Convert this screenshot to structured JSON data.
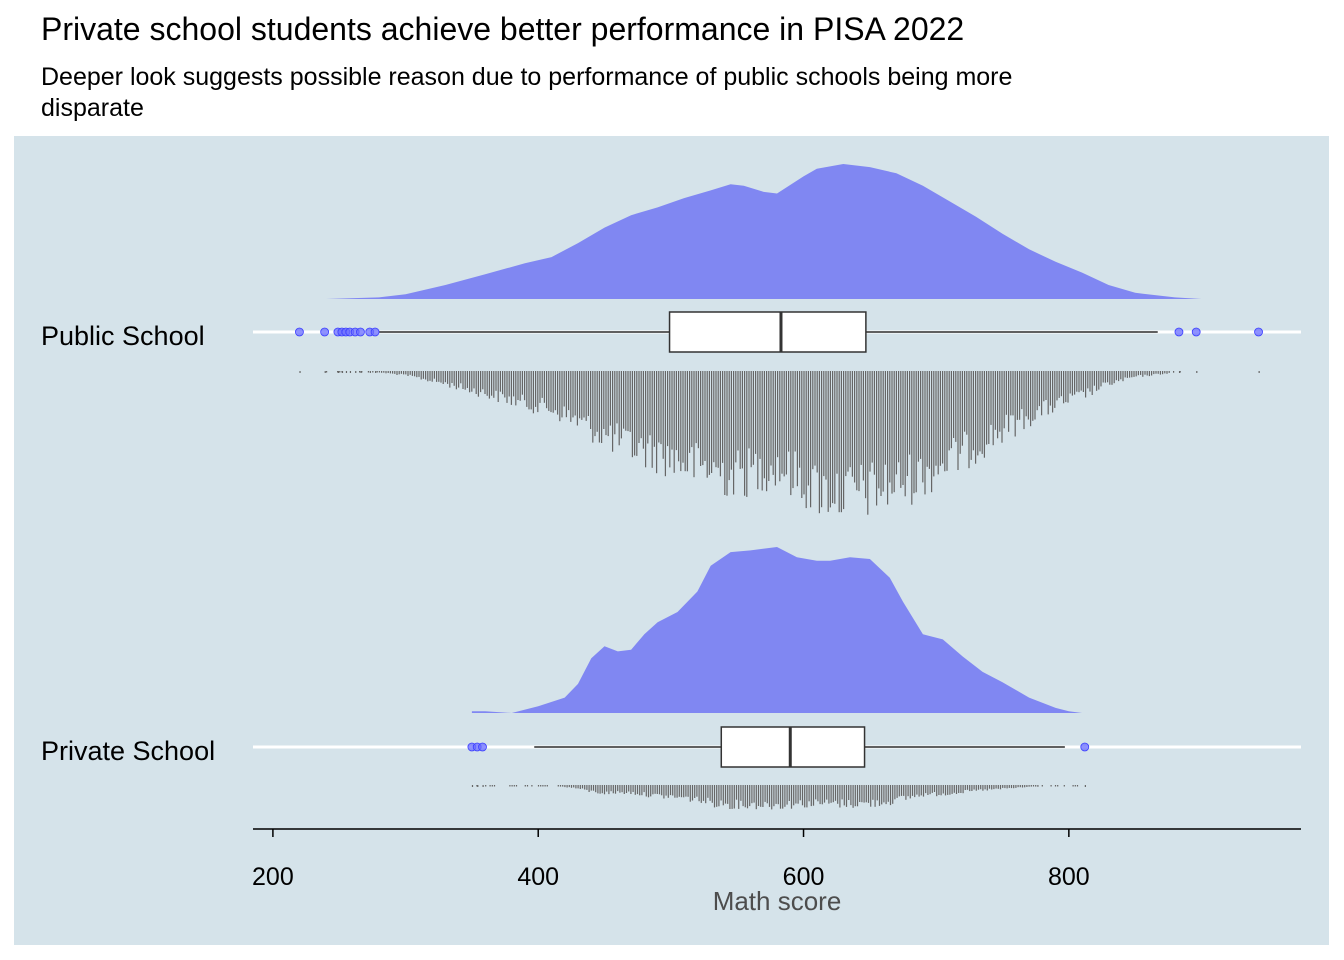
{
  "title": "Private school students achieve better performance in PISA 2022",
  "subtitle": "Deeper look suggests possible reason due to performance of public schools being more disparate",
  "colors": {
    "panel_background": "#d5e3ea",
    "density_fill": "#8087f2",
    "outlier_point": "#6a6cff",
    "dot_color": "#666666",
    "box_fill": "#ffffff",
    "axis_line": "#000000",
    "xlabel_color": "#4d4d4d"
  },
  "chart_data": {
    "type": "raincloud",
    "orientation": "horizontal",
    "xlabel": "Math score",
    "ylabel": "",
    "xlim": [
      185,
      975
    ],
    "x_ticks": [
      200,
      400,
      600,
      800
    ],
    "tick_labels": [
      "200",
      "400",
      "600",
      "800"
    ],
    "grid": "horizontal lines at each category",
    "legend": "none",
    "categories": [
      "Public School",
      "Private School"
    ],
    "series": [
      {
        "category": "Public School",
        "box": {
          "whisker_low": 280,
          "q1": 499,
          "median": 583,
          "q3": 647,
          "whisker_high": 867
        },
        "outliers": [
          220,
          239,
          249,
          252,
          255,
          258,
          262,
          266,
          273,
          277,
          883,
          896,
          943
        ],
        "density": [
          [
            240,
            0.0
          ],
          [
            280,
            0.01
          ],
          [
            300,
            0.03
          ],
          [
            330,
            0.09
          ],
          [
            360,
            0.16
          ],
          [
            390,
            0.23
          ],
          [
            410,
            0.27
          ],
          [
            430,
            0.36
          ],
          [
            450,
            0.46
          ],
          [
            470,
            0.54
          ],
          [
            490,
            0.59
          ],
          [
            510,
            0.65
          ],
          [
            530,
            0.7
          ],
          [
            545,
            0.74
          ],
          [
            555,
            0.73
          ],
          [
            570,
            0.69
          ],
          [
            580,
            0.68
          ],
          [
            600,
            0.79
          ],
          [
            610,
            0.84
          ],
          [
            630,
            0.87
          ],
          [
            650,
            0.85
          ],
          [
            670,
            0.81
          ],
          [
            690,
            0.73
          ],
          [
            710,
            0.63
          ],
          [
            730,
            0.53
          ],
          [
            750,
            0.42
          ],
          [
            770,
            0.32
          ],
          [
            790,
            0.24
          ],
          [
            810,
            0.17
          ],
          [
            830,
            0.09
          ],
          [
            850,
            0.04
          ],
          [
            880,
            0.01
          ],
          [
            900,
            0.0
          ]
        ]
      },
      {
        "category": "Private School",
        "box": {
          "whisker_low": 397,
          "q1": 538,
          "median": 590,
          "q3": 646,
          "whisker_high": 797
        },
        "outliers": [
          350,
          354,
          358,
          812
        ],
        "density": [
          [
            350,
            0.01
          ],
          [
            360,
            0.01
          ],
          [
            380,
            0.0
          ],
          [
            400,
            0.04
          ],
          [
            420,
            0.09
          ],
          [
            430,
            0.17
          ],
          [
            440,
            0.32
          ],
          [
            450,
            0.39
          ],
          [
            460,
            0.36
          ],
          [
            470,
            0.37
          ],
          [
            480,
            0.46
          ],
          [
            490,
            0.53
          ],
          [
            505,
            0.59
          ],
          [
            520,
            0.71
          ],
          [
            530,
            0.86
          ],
          [
            545,
            0.94
          ],
          [
            560,
            0.95
          ],
          [
            580,
            0.97
          ],
          [
            595,
            0.91
          ],
          [
            610,
            0.89
          ],
          [
            620,
            0.89
          ],
          [
            635,
            0.91
          ],
          [
            650,
            0.9
          ],
          [
            665,
            0.79
          ],
          [
            675,
            0.65
          ],
          [
            690,
            0.46
          ],
          [
            705,
            0.43
          ],
          [
            720,
            0.33
          ],
          [
            735,
            0.24
          ],
          [
            750,
            0.18
          ],
          [
            770,
            0.09
          ],
          [
            790,
            0.03
          ],
          [
            800,
            0.01
          ],
          [
            810,
            0.0
          ]
        ]
      }
    ]
  }
}
